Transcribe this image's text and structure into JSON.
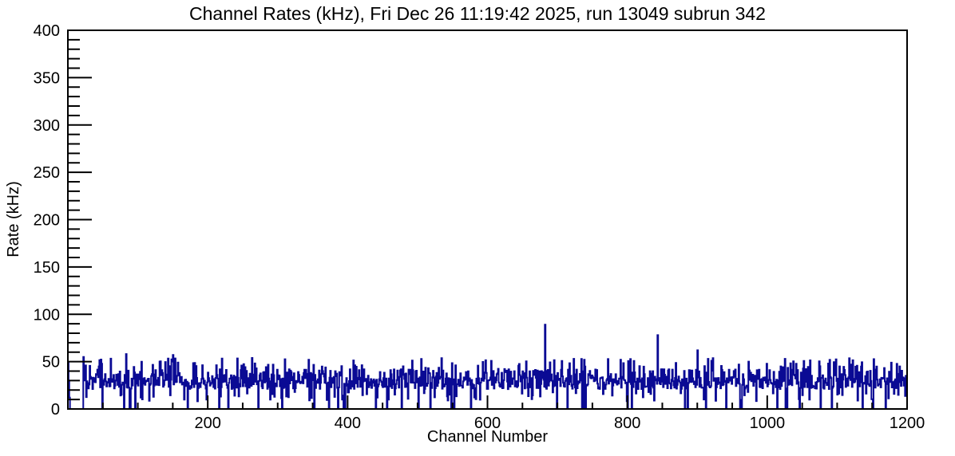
{
  "chart_data": {
    "type": "bar",
    "style": "step-histogram",
    "title": "Channel Rates (kHz), Fri Dec 26 11:19:42 2025, run 13049 subrun 342",
    "run": "13049",
    "subrun": "342",
    "timestamp": "Fri Dec 26 11:19:42 2025",
    "xlabel": "Channel Number",
    "ylabel": "Rate (kHz)",
    "xlim": [
      0,
      1200
    ],
    "ylim": [
      0,
      400
    ],
    "x_major_ticks": [
      200,
      400,
      600,
      800,
      1000,
      1200
    ],
    "x_minor_step": 50,
    "y_major_ticks": [
      0,
      50,
      100,
      150,
      200,
      250,
      300,
      350,
      400
    ],
    "y_minor_step": 10,
    "n_bins": 1200,
    "grid": "off",
    "legend": "none",
    "line_color": "#0a0a94",
    "frame_color": "#000000",
    "background_color": "#ffffff",
    "typical_rate_khz": 28,
    "baseline_band_khz": [
      18,
      40
    ],
    "zero_gap_channels": [
      3,
      21
    ],
    "zero_channels": [
      88,
      89,
      96,
      352,
      548,
      576,
      699,
      737,
      800,
      912,
      941,
      1014,
      1151
    ],
    "peak_channels": [
      {
        "channel": 0,
        "rate": 49
      },
      {
        "channel": 1,
        "rate": 30
      },
      {
        "channel": 2,
        "rate": 12
      },
      {
        "channel": 22,
        "rate": 55
      },
      {
        "channel": 83,
        "rate": 58
      },
      {
        "channel": 131,
        "rate": 50
      },
      {
        "channel": 150,
        "rate": 57
      },
      {
        "channel": 682,
        "rate": 89
      },
      {
        "channel": 843,
        "rate": 78
      },
      {
        "channel": 900,
        "rate": 62
      },
      {
        "channel": 973,
        "rate": 50
      },
      {
        "channel": 1025,
        "rate": 53
      },
      {
        "channel": 1189,
        "rate": 45
      }
    ],
    "noise": {
      "seed": 13049342,
      "zero_prob": 0.03,
      "dip_prob": 0.06,
      "dip_range": [
        8,
        18
      ],
      "tall_prob": 0.12,
      "tall_range": [
        40,
        54
      ],
      "high_prob": 0.24,
      "high_range": [
        32,
        42
      ],
      "base_range": [
        21,
        33
      ]
    }
  }
}
